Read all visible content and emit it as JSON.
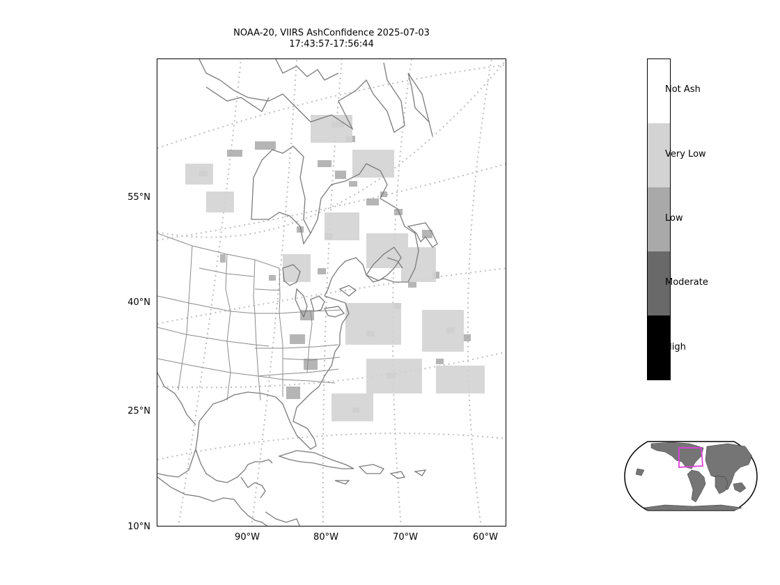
{
  "title": {
    "line1": "NOAA-20, VIIRS AshConfidence 2025-07-03",
    "line2": "17:43:57-17:56:44"
  },
  "lat_labels": [
    "55°N",
    "40°N",
    "25°N",
    "10°N"
  ],
  "lon_labels": [
    "90°W",
    "80°W",
    "70°W",
    "60°W"
  ],
  "colorbar": {
    "labels": [
      "Not Ash",
      "Very Low",
      "Low",
      "Moderate",
      "High"
    ],
    "colors": [
      "#ffffff",
      "#d3d3d3",
      "#a9a9a9",
      "#696969",
      "#000000"
    ]
  },
  "colors": {
    "coastline": "#7a7a7a",
    "gridline": "#bdbdbd",
    "ash_low": "#a9a9a9",
    "ash_very_low": "#d3d3d3",
    "inset_land": "#757575",
    "inset_box": "#e040e0"
  }
}
